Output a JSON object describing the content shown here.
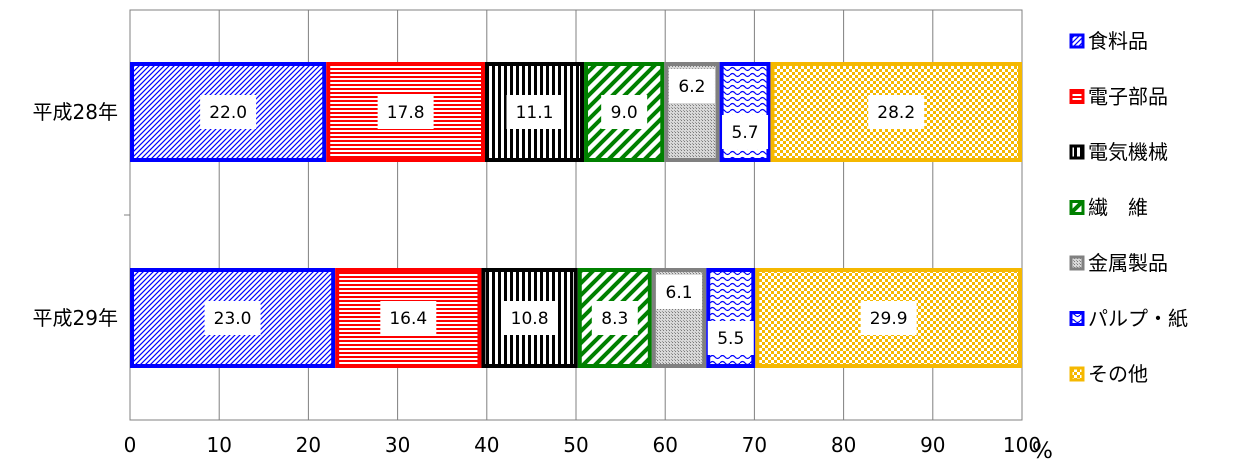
{
  "chart_data": {
    "type": "bar",
    "orientation": "horizontal",
    "stacked": true,
    "categories": [
      "平成28年",
      "平成29年"
    ],
    "series": [
      {
        "name": "食料品",
        "values": [
          22.0,
          23.0
        ],
        "color": "#0000ff",
        "pattern": "diagonal"
      },
      {
        "name": "電子部品",
        "values": [
          17.8,
          16.4
        ],
        "color": "#ff0000",
        "pattern": "horizontal"
      },
      {
        "name": "電気機械",
        "values": [
          11.1,
          10.8
        ],
        "color": "#000000",
        "pattern": "vertical"
      },
      {
        "name": "繊　維",
        "values": [
          9.0,
          8.3
        ],
        "color": "#008000",
        "pattern": "wide-diagonal"
      },
      {
        "name": "金属製品",
        "values": [
          6.2,
          6.1
        ],
        "color": "#808080",
        "pattern": "dots"
      },
      {
        "name": "パルプ・紙",
        "values": [
          5.7,
          5.5
        ],
        "color": "#0000ff",
        "pattern": "waves"
      },
      {
        "name": "その他",
        "values": [
          28.2,
          29.9
        ],
        "color": "#f5b800",
        "pattern": "checker"
      }
    ],
    "xlim": [
      0,
      100
    ],
    "xticks": [
      "0",
      "10",
      "20",
      "30",
      "40",
      "50",
      "60",
      "70",
      "80",
      "90",
      "100"
    ],
    "xunit": "%",
    "grid": true,
    "legend_position": "right"
  }
}
